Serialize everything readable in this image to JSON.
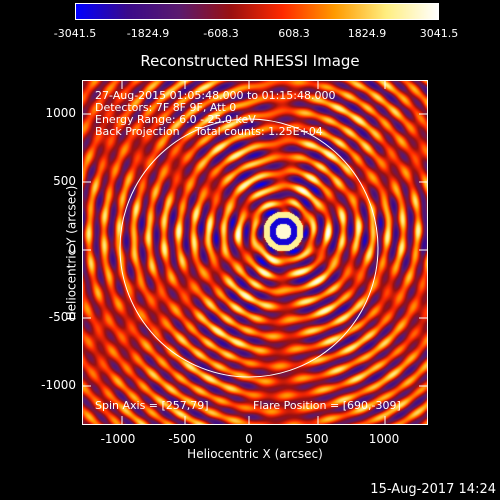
{
  "colorbar": {
    "tick_labels": [
      "-3041.5",
      "-1824.9",
      "-608.3",
      "608.3",
      "1824.9",
      "3041.5"
    ],
    "colormap": [
      "#0000ff",
      "#3a0a8a",
      "#5a1a6e",
      "#9a1010",
      "#ff2a00",
      "#ff9a00",
      "#ffee80",
      "#ffffff"
    ]
  },
  "title": "Reconstructed RHESSI Image",
  "info": {
    "time_range": "27-Aug-2015 01:05:48.000 to 01:15:48.000",
    "detectors": "Detectors: 7F 8F 9F, Att 0",
    "energy": "Energy Range: 6.0 - 25.0 keV",
    "method": "Back Projection",
    "total_counts": "Total counts: 1.25E+04",
    "spin_axis": "Spin Axis = [257,79]",
    "flare_position": "Flare Position = [690,-309]"
  },
  "axes": {
    "xlabel": "Heliocentric X (arcsec)",
    "ylabel": "Heliocentric Y (arcsec)",
    "xticks": [
      "-1000",
      "-500",
      "0",
      "500",
      "1000"
    ],
    "yticks": [
      "1000",
      "500",
      "0",
      "-500",
      "-1000"
    ]
  },
  "timestamp": "15-Aug-2017 14:24"
}
